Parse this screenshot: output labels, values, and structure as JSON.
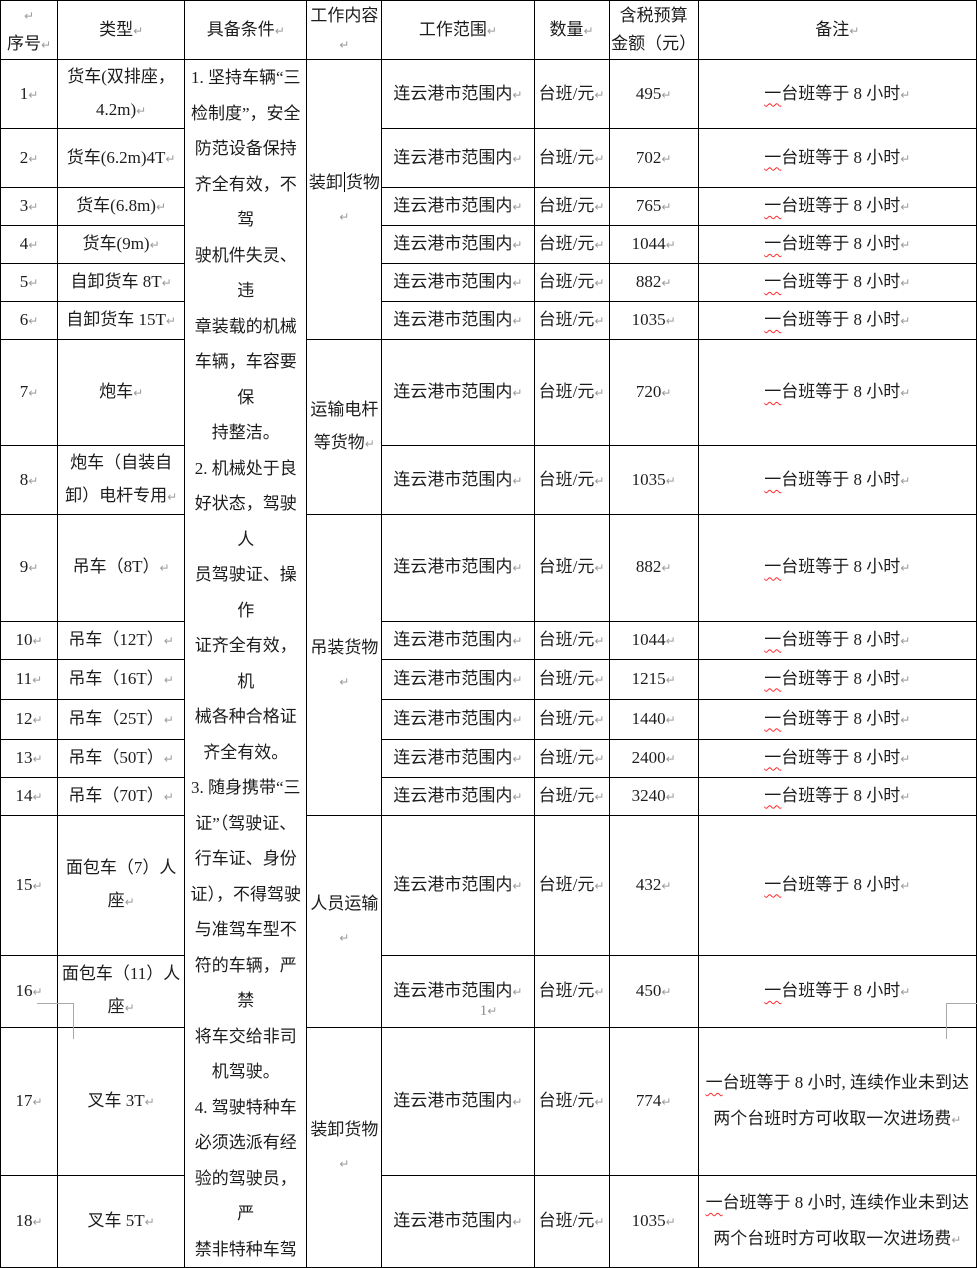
{
  "document": {
    "footer": {
      "page_number": "1↵"
    }
  },
  "colors": {
    "spellcheck_wavy": "#ff2a2a",
    "formatting_mark_gray": "#9b9b9b",
    "border_black": "#000000",
    "margin_mark_gray": "#a9a9a9"
  },
  "table": {
    "headers": {
      "index": "↵\n序号↵",
      "type": "类型↵",
      "conditions": "具备条件↵",
      "work_content": "工作内容↵",
      "work_scope": "工作范围↵",
      "quantity": "数量↵",
      "budget": "含税预算\n金额（元）",
      "remark": "备注↵"
    },
    "conditions_text": "1. 坚持车辆“三\n检制度”，安全\n防范设备保持\n齐全有效，不驾\n驶机件失灵、违\n章装载的机械\n车辆，车容要保\n持整洁。\n2. 机械处于良\n好状态，驾驶人\n员驾驶证、操作\n证齐全有效，机\n械各种合格证\n齐全有效。\n3. 随身携带“三\n证”（驾驶证、\n行车证、身份\n证），不得驾驶\n与准驾车型不\n符的车辆，严禁\n将车交给非司\n机驾驶。\n4. 驾驶特种车\n必须选派有经\n验的驾驶员，严\n禁非特种车驾",
    "work_groups": {
      "loading_1_before": "装卸",
      "loading_1_after": "货物↵",
      "transport_poles": "运输电杆\n等货物↵",
      "hoisting": "吊装货物↵",
      "personnel": "人员运输↵",
      "loading_2": "装卸货物↵"
    },
    "rows": [
      {
        "no": "1↵",
        "type": "货车(双排座，\n4.2m)↵",
        "scope": "连云港市范围内↵",
        "qty": "台班/元↵",
        "amount": "495↵",
        "remark": "一台班等于 8 小时↵"
      },
      {
        "no": "2↵",
        "type": "货车(6.2m)4T↵",
        "scope": "连云港市范围内↵",
        "qty": "台班/元↵",
        "amount": "702↵",
        "remark": "一台班等于 8 小时↵"
      },
      {
        "no": "3↵",
        "type": "货车(6.8m)↵",
        "scope": "连云港市范围内↵",
        "qty": "台班/元↵",
        "amount": "765↵",
        "remark": "一台班等于 8 小时↵"
      },
      {
        "no": "4↵",
        "type": "货车(9m)↵",
        "scope": "连云港市范围内↵",
        "qty": "台班/元↵",
        "amount": "1044↵",
        "remark": "一台班等于 8 小时↵"
      },
      {
        "no": "5↵",
        "type": "自卸货车 8T↵",
        "scope": "连云港市范围内↵",
        "qty": "台班/元↵",
        "amount": "882↵",
        "remark": "一台班等于 8 小时↵"
      },
      {
        "no": "6↵",
        "type": "自卸货车 15T↵",
        "scope": "连云港市范围内↵",
        "qty": "台班/元↵",
        "amount": "1035↵",
        "remark": "一台班等于 8 小时↵"
      },
      {
        "no": "7↵",
        "type": "炮车↵",
        "scope": "连云港市范围内↵",
        "qty": "台班/元↵",
        "amount": "720↵",
        "remark": "一台班等于 8 小时↵"
      },
      {
        "no": "8↵",
        "type": "炮车（自装自\n卸）电杆专用↵",
        "scope": "连云港市范围内↵",
        "qty": "台班/元↵",
        "amount": "1035↵",
        "remark": "一台班等于 8 小时↵"
      },
      {
        "no": "9↵",
        "type": "吊车（8T）↵",
        "scope": "连云港市范围内↵",
        "qty": "台班/元↵",
        "amount": "882↵",
        "remark": "一台班等于 8 小时↵"
      },
      {
        "no": "10↵",
        "type": "吊车（12T）↵",
        "scope": "连云港市范围内↵",
        "qty": "台班/元↵",
        "amount": "1044↵",
        "remark": "一台班等于 8 小时↵"
      },
      {
        "no": "11↵",
        "type": "吊车（16T）↵",
        "scope": "连云港市范围内↵",
        "qty": "台班/元↵",
        "amount": "1215↵",
        "remark": "一台班等于 8 小时↵"
      },
      {
        "no": "12↵",
        "type": "吊车（25T）↵",
        "scope": "连云港市范围内↵",
        "qty": "台班/元↵",
        "amount": "1440↵",
        "remark": "一台班等于 8 小时↵"
      },
      {
        "no": "13↵",
        "type": "吊车（50T）↵",
        "scope": "连云港市范围内↵",
        "qty": "台班/元↵",
        "amount": "2400↵",
        "remark": "一台班等于 8 小时↵"
      },
      {
        "no": "14↵",
        "type": "吊车（70T）↵",
        "scope": "连云港市范围内↵",
        "qty": "台班/元↵",
        "amount": "3240↵",
        "remark": "一台班等于 8 小时↵"
      },
      {
        "no": "15↵",
        "type": "面包车（7）人\n座↵",
        "scope": "连云港市范围内↵",
        "qty": "台班/元↵",
        "amount": "432↵",
        "remark": "一台班等于 8 小时↵"
      },
      {
        "no": "16↵",
        "type": "面包车（11）人\n座↵",
        "scope": "连云港市范围内↵",
        "qty": "台班/元↵",
        "amount": "450↵",
        "remark": "一台班等于 8 小时↵"
      },
      {
        "no": "17↵",
        "type": "叉车 3T↵",
        "scope": "连云港市范围内↵",
        "qty": "台班/元↵",
        "amount": "774↵",
        "remark": "一台班等于 8 小时, 连续作业未到达\n两个台班时方可收取一次进场费↵"
      },
      {
        "no": "18↵",
        "type": "叉车 5T↵",
        "scope": "连云港市范围内↵",
        "qty": "台班/元↵",
        "amount": "1035↵",
        "remark": "一台班等于 8 小时, 连续作业未到达\n两个台班时方可收取一次进场费↵"
      }
    ]
  }
}
